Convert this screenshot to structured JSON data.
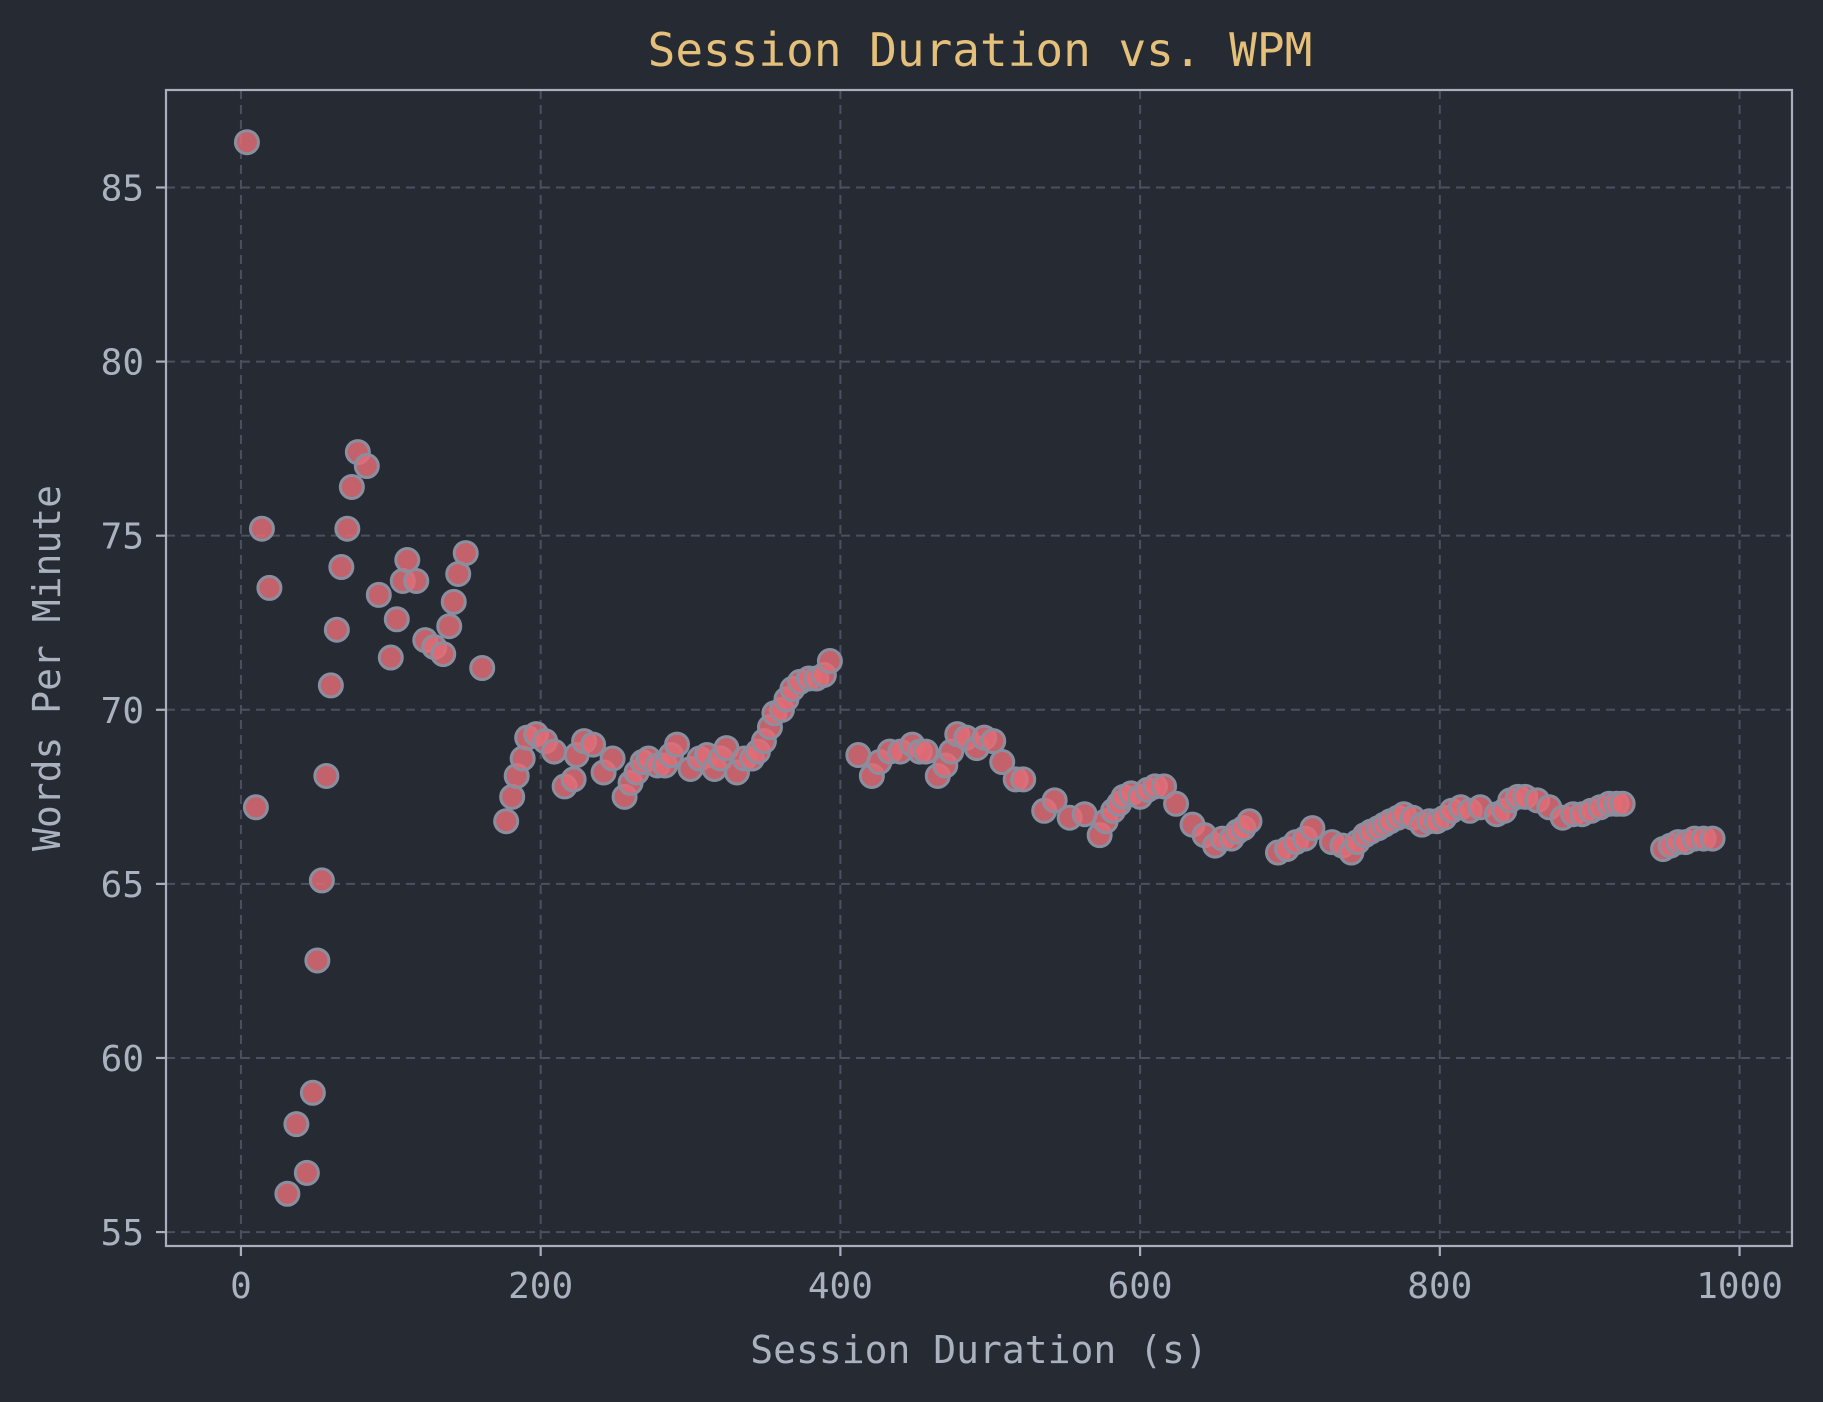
{
  "chart_data": {
    "type": "scatter",
    "title": "Session Duration vs. WPM",
    "xlabel": "Session Duration (s)",
    "ylabel": "Words Per Minute",
    "xlim": [
      -50,
      1035
    ],
    "ylim": [
      54.6,
      87.8
    ],
    "xticks": [
      0,
      200,
      400,
      600,
      800,
      1000
    ],
    "yticks": [
      55,
      60,
      65,
      70,
      75,
      80,
      85
    ],
    "grid": true,
    "legend": "none",
    "colors": {
      "background": "#262a33",
      "title": "#e5c07b",
      "point_fill": "#e06c75",
      "point_edge": "#8a8fa0",
      "text": "#abb2bf",
      "grid": "#4b5060"
    },
    "points": [
      [
        4,
        86.3
      ],
      [
        10,
        67.2
      ],
      [
        14,
        75.2
      ],
      [
        19,
        73.5
      ],
      [
        31,
        56.1
      ],
      [
        37,
        58.1
      ],
      [
        44,
        56.7
      ],
      [
        48,
        59.0
      ],
      [
        51,
        62.8
      ],
      [
        54,
        65.1
      ],
      [
        57,
        68.1
      ],
      [
        60,
        70.7
      ],
      [
        64,
        72.3
      ],
      [
        67,
        74.1
      ],
      [
        71,
        75.2
      ],
      [
        74,
        76.4
      ],
      [
        78,
        77.4
      ],
      [
        84,
        77.0
      ],
      [
        92,
        73.3
      ],
      [
        100,
        71.5
      ],
      [
        104,
        72.6
      ],
      [
        108,
        73.7
      ],
      [
        111,
        74.3
      ],
      [
        117,
        73.7
      ],
      [
        123,
        72.0
      ],
      [
        129,
        71.8
      ],
      [
        135,
        71.6
      ],
      [
        139,
        72.4
      ],
      [
        142,
        73.1
      ],
      [
        145,
        73.9
      ],
      [
        150,
        74.5
      ],
      [
        161,
        71.2
      ],
      [
        177,
        66.8
      ],
      [
        181,
        67.5
      ],
      [
        184,
        68.1
      ],
      [
        188,
        68.6
      ],
      [
        191,
        69.2
      ],
      [
        197,
        69.3
      ],
      [
        203,
        69.1
      ],
      [
        209,
        68.8
      ],
      [
        216,
        67.8
      ],
      [
        222,
        68.0
      ],
      [
        224,
        68.7
      ],
      [
        229,
        69.1
      ],
      [
        235,
        69.0
      ],
      [
        242,
        68.2
      ],
      [
        248,
        68.6
      ],
      [
        256,
        67.5
      ],
      [
        260,
        67.9
      ],
      [
        264,
        68.2
      ],
      [
        268,
        68.5
      ],
      [
        272,
        68.6
      ],
      [
        278,
        68.4
      ],
      [
        283,
        68.4
      ],
      [
        287,
        68.7
      ],
      [
        291,
        69.0
      ],
      [
        300,
        68.3
      ],
      [
        306,
        68.6
      ],
      [
        311,
        68.7
      ],
      [
        316,
        68.3
      ],
      [
        320,
        68.6
      ],
      [
        324,
        68.9
      ],
      [
        331,
        68.2
      ],
      [
        336,
        68.6
      ],
      [
        341,
        68.6
      ],
      [
        345,
        68.8
      ],
      [
        349,
        69.1
      ],
      [
        353,
        69.5
      ],
      [
        356,
        69.9
      ],
      [
        361,
        70.0
      ],
      [
        364,
        70.3
      ],
      [
        368,
        70.6
      ],
      [
        373,
        70.8
      ],
      [
        379,
        70.9
      ],
      [
        384,
        70.9
      ],
      [
        389,
        71.0
      ],
      [
        393,
        71.4
      ],
      [
        412,
        68.7
      ],
      [
        421,
        68.1
      ],
      [
        426,
        68.5
      ],
      [
        433,
        68.8
      ],
      [
        440,
        68.8
      ],
      [
        448,
        69.0
      ],
      [
        453,
        68.8
      ],
      [
        457,
        68.8
      ],
      [
        465,
        68.1
      ],
      [
        470,
        68.4
      ],
      [
        474,
        68.8
      ],
      [
        478,
        69.3
      ],
      [
        484,
        69.2
      ],
      [
        491,
        68.9
      ],
      [
        496,
        69.2
      ],
      [
        502,
        69.1
      ],
      [
        508,
        68.5
      ],
      [
        517,
        68.0
      ],
      [
        522,
        68.0
      ],
      [
        536,
        67.1
      ],
      [
        543,
        67.4
      ],
      [
        553,
        66.9
      ],
      [
        563,
        67.0
      ],
      [
        573,
        66.4
      ],
      [
        577,
        66.8
      ],
      [
        582,
        67.1
      ],
      [
        586,
        67.3
      ],
      [
        589,
        67.5
      ],
      [
        594,
        67.6
      ],
      [
        600,
        67.5
      ],
      [
        605,
        67.7
      ],
      [
        610,
        67.8
      ],
      [
        616,
        67.8
      ],
      [
        624,
        67.3
      ],
      [
        635,
        66.7
      ],
      [
        643,
        66.4
      ],
      [
        650,
        66.1
      ],
      [
        655,
        66.3
      ],
      [
        661,
        66.3
      ],
      [
        665,
        66.5
      ],
      [
        669,
        66.6
      ],
      [
        673,
        66.8
      ],
      [
        692,
        65.9
      ],
      [
        698,
        66.0
      ],
      [
        704,
        66.2
      ],
      [
        710,
        66.3
      ],
      [
        715,
        66.6
      ],
      [
        728,
        66.2
      ],
      [
        735,
        66.1
      ],
      [
        741,
        65.9
      ],
      [
        745,
        66.2
      ],
      [
        750,
        66.4
      ],
      [
        754,
        66.5
      ],
      [
        759,
        66.6
      ],
      [
        763,
        66.7
      ],
      [
        767,
        66.8
      ],
      [
        772,
        66.9
      ],
      [
        776,
        67.0
      ],
      [
        782,
        66.9
      ],
      [
        788,
        66.7
      ],
      [
        793,
        66.8
      ],
      [
        798,
        66.8
      ],
      [
        803,
        66.9
      ],
      [
        808,
        67.1
      ],
      [
        814,
        67.2
      ],
      [
        820,
        67.1
      ],
      [
        827,
        67.2
      ],
      [
        838,
        67.0
      ],
      [
        843,
        67.1
      ],
      [
        847,
        67.4
      ],
      [
        852,
        67.5
      ],
      [
        857,
        67.5
      ],
      [
        865,
        67.4
      ],
      [
        873,
        67.2
      ],
      [
        882,
        66.9
      ],
      [
        889,
        67.0
      ],
      [
        895,
        67.0
      ],
      [
        901,
        67.1
      ],
      [
        907,
        67.2
      ],
      [
        913,
        67.3
      ],
      [
        918,
        67.3
      ],
      [
        922,
        67.3
      ],
      [
        949,
        66.0
      ],
      [
        954,
        66.1
      ],
      [
        959,
        66.2
      ],
      [
        964,
        66.2
      ],
      [
        970,
        66.3
      ],
      [
        976,
        66.3
      ],
      [
        982,
        66.3
      ]
    ]
  }
}
